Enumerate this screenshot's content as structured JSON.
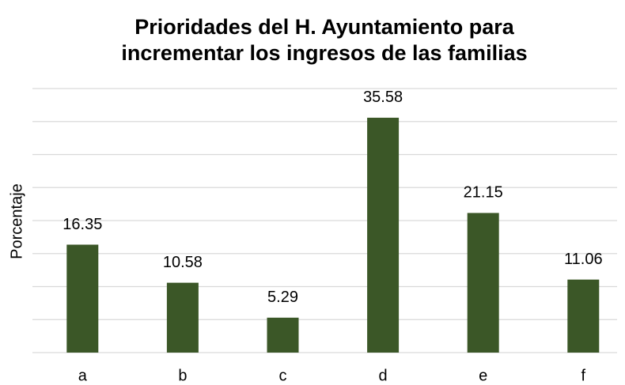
{
  "chart_data": {
    "type": "bar",
    "title": [
      "Prioridades del H. Ayuntamiento para",
      "incrementar los ingresos de las familias"
    ],
    "y_label": "Porcentaje",
    "categories": [
      "a",
      "b",
      "c",
      "d",
      "e",
      "f"
    ],
    "values": [
      16.35,
      10.58,
      5.29,
      35.58,
      21.15,
      11.06
    ],
    "color": "#3b5727",
    "ylim": [
      0,
      40
    ],
    "yticks": [
      0,
      5,
      10,
      15,
      20,
      25,
      30,
      35,
      40
    ],
    "grid": true
  }
}
